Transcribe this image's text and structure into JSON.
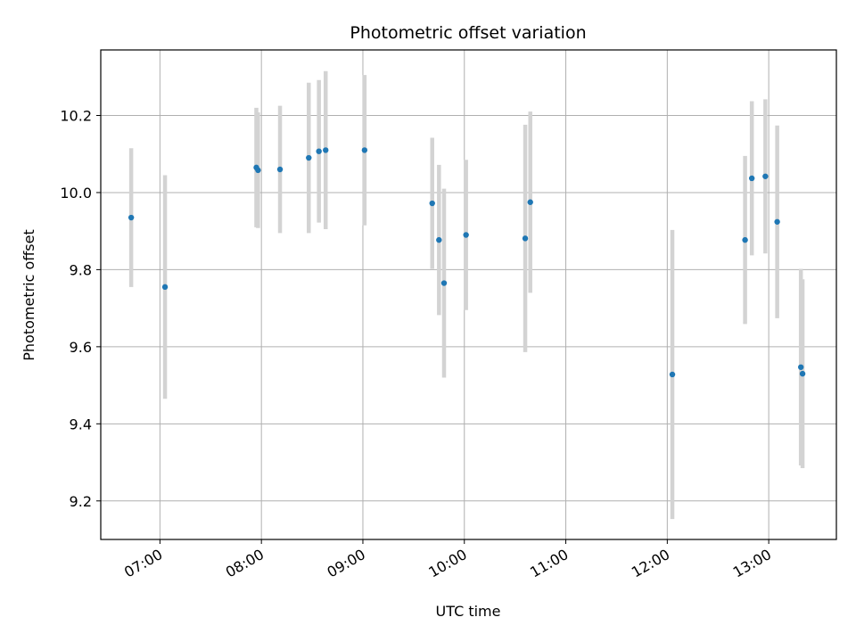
{
  "chart_data": {
    "type": "scatter",
    "title": "Photometric offset variation",
    "xlabel": "UTC time",
    "ylabel": "Photometric offset",
    "x_unit": "UTC time (HH:MM)",
    "xlim": [
      "06:25",
      "13:40"
    ],
    "ylim": [
      9.1,
      10.37
    ],
    "x_ticks": [
      "07:00",
      "08:00",
      "09:00",
      "10:00",
      "11:00",
      "12:00",
      "13:00"
    ],
    "y_ticks": [
      9.2,
      9.4,
      9.6,
      9.8,
      10.0,
      10.2
    ],
    "y_tick_labels": [
      "9.2",
      "9.4",
      "9.6",
      "9.8",
      "10.0",
      "10.2"
    ],
    "grid": true,
    "marker_color": "#1f77b4",
    "errorbar_color": "#d3d3d3",
    "points": [
      {
        "t": "06:43",
        "y": 9.935,
        "err": 0.18
      },
      {
        "t": "07:03",
        "y": 9.755,
        "err": 0.29
      },
      {
        "t": "07:57",
        "y": 10.065,
        "err": 0.155
      },
      {
        "t": "07:58",
        "y": 10.058,
        "err": 0.15
      },
      {
        "t": "08:11",
        "y": 10.06,
        "err": 0.165
      },
      {
        "t": "08:28",
        "y": 10.09,
        "err": 0.195
      },
      {
        "t": "08:34",
        "y": 10.107,
        "err": 0.185
      },
      {
        "t": "08:38",
        "y": 10.11,
        "err": 0.205
      },
      {
        "t": "09:01",
        "y": 10.11,
        "err": 0.195
      },
      {
        "t": "09:41",
        "y": 9.972,
        "err": 0.17
      },
      {
        "t": "09:45",
        "y": 9.877,
        "err": 0.195
      },
      {
        "t": "09:48",
        "y": 9.765,
        "err": 0.245
      },
      {
        "t": "10:01",
        "y": 9.89,
        "err": 0.195
      },
      {
        "t": "10:36",
        "y": 9.881,
        "err": 0.295
      },
      {
        "t": "10:39",
        "y": 9.975,
        "err": 0.235
      },
      {
        "t": "12:03",
        "y": 9.528,
        "err": 0.375
      },
      {
        "t": "12:46",
        "y": 9.877,
        "err": 0.218
      },
      {
        "t": "12:50",
        "y": 10.037,
        "err": 0.2
      },
      {
        "t": "12:58",
        "y": 10.042,
        "err": 0.2
      },
      {
        "t": "13:05",
        "y": 9.924,
        "err": 0.25
      },
      {
        "t": "13:19",
        "y": 9.547,
        "err": 0.255
      },
      {
        "t": "13:20",
        "y": 9.53,
        "err": 0.245
      }
    ]
  }
}
